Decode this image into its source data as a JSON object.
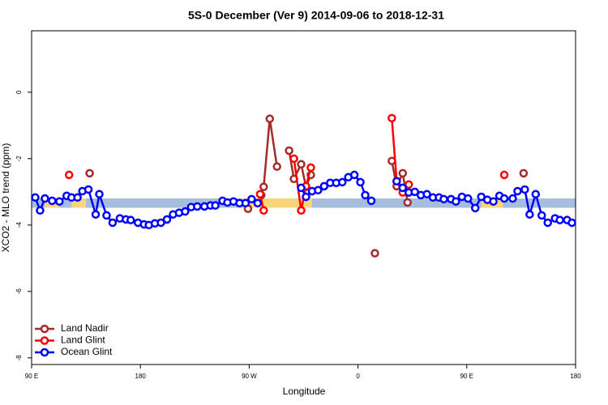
{
  "chart_data": {
    "type": "line",
    "title": "5S-0 December (Ver 9)   2014-09-06 to 2018-12-31",
    "x_label": "Longitude",
    "y_label": "XCO2 - MLO trend (ppm)",
    "xlim": [
      90,
      540
    ],
    "ylim": [
      -8.2,
      1.85
    ],
    "xticks": [
      {
        "value": 90,
        "label": "90 E"
      },
      {
        "value": 180,
        "label": "180"
      },
      {
        "value": 270,
        "label": "90 W"
      },
      {
        "value": 360,
        "label": "0"
      },
      {
        "value": 450,
        "label": "90 E"
      },
      {
        "value": 540,
        "label": "180"
      }
    ],
    "yticks": [
      0,
      -2,
      -4,
      -6,
      -8
    ],
    "legend": "bottom-left",
    "band": {
      "range": [
        -3.2,
        -3.48
      ],
      "color": "#a7bddc",
      "land_color": "#f6d57c",
      "land_xranges": [
        [
          101,
          113
        ],
        [
          123,
          135
        ],
        [
          265,
          322
        ],
        [
          462,
          480
        ]
      ]
    },
    "series": [
      {
        "name": "Land Nadir",
        "color": "#a52a2a",
        "x": [
          138,
          null,
          269,
          null,
          280,
          282,
          287,
          293,
          null,
          303,
          307,
          313,
          317,
          321,
          null,
          374,
          null,
          388,
          392,
          397,
          401,
          null,
          497
        ],
        "values": [
          -2.44,
          null,
          -3.51,
          null,
          -3.1,
          -2.85,
          -0.8,
          -2.24,
          null,
          -1.76,
          -2.61,
          -2.17,
          -2.85,
          -2.49,
          null,
          -4.85,
          null,
          -2.07,
          -2.83,
          -2.44,
          -3.32,
          null,
          -2.44
        ]
      },
      {
        "name": "Land Glint",
        "color": "#ff0000",
        "x": [
          121,
          null,
          279,
          282,
          null,
          307,
          313,
          317,
          321,
          null,
          388,
          392,
          397,
          402,
          null,
          481
        ],
        "values": [
          -2.49,
          null,
          -3.07,
          -3.56,
          null,
          -2.0,
          -3.56,
          -2.83,
          -2.27,
          null,
          -0.78,
          -2.68,
          -3.02,
          -2.78,
          null,
          -2.49
        ]
      },
      {
        "name": "Ocean Glint",
        "color": "#0000ff",
        "x": [
          93,
          97,
          101,
          107,
          113,
          119,
          123,
          128,
          132,
          137,
          143,
          146,
          152,
          157,
          163,
          168,
          172,
          178,
          183,
          187,
          192,
          197,
          202,
          207,
          212,
          217,
          222,
          227,
          233,
          238,
          242,
          248,
          252,
          257,
          262,
          267,
          272,
          277,
          null,
          313,
          317,
          322,
          327,
          332,
          337,
          342,
          347,
          352,
          357,
          362,
          366,
          371,
          null,
          392,
          397,
          402,
          407,
          412,
          417,
          422,
          427,
          431,
          437,
          441,
          446,
          451,
          457,
          462,
          467,
          472,
          477,
          481,
          488,
          492,
          498,
          502,
          507,
          512,
          517,
          523,
          527,
          533,
          537
        ],
        "values": [
          -3.17,
          -3.56,
          -3.2,
          -3.27,
          -3.29,
          -3.12,
          -3.17,
          -3.17,
          -2.98,
          -2.93,
          -3.68,
          -3.07,
          -3.71,
          -3.93,
          -3.8,
          -3.83,
          -3.85,
          -3.93,
          -3.98,
          -4.0,
          -3.95,
          -3.93,
          -3.83,
          -3.68,
          -3.63,
          -3.59,
          -3.46,
          -3.44,
          -3.44,
          -3.41,
          -3.41,
          -3.27,
          -3.32,
          -3.29,
          -3.34,
          -3.34,
          -3.22,
          -3.34,
          null,
          -2.88,
          -3.15,
          -2.98,
          -2.95,
          -2.83,
          -2.73,
          -2.73,
          -2.71,
          -2.56,
          -2.49,
          -2.71,
          -3.1,
          -3.27,
          null,
          -2.68,
          -2.88,
          -3.02,
          -3.0,
          -3.1,
          -3.07,
          -3.17,
          -3.17,
          -3.22,
          -3.22,
          -3.29,
          -3.15,
          -3.2,
          -3.49,
          -3.15,
          -3.24,
          -3.29,
          -3.12,
          -3.2,
          -3.2,
          -2.98,
          -2.93,
          -3.68,
          -3.07,
          -3.71,
          -3.93,
          -3.8,
          -3.85,
          -3.85,
          -3.93
        ]
      }
    ]
  }
}
